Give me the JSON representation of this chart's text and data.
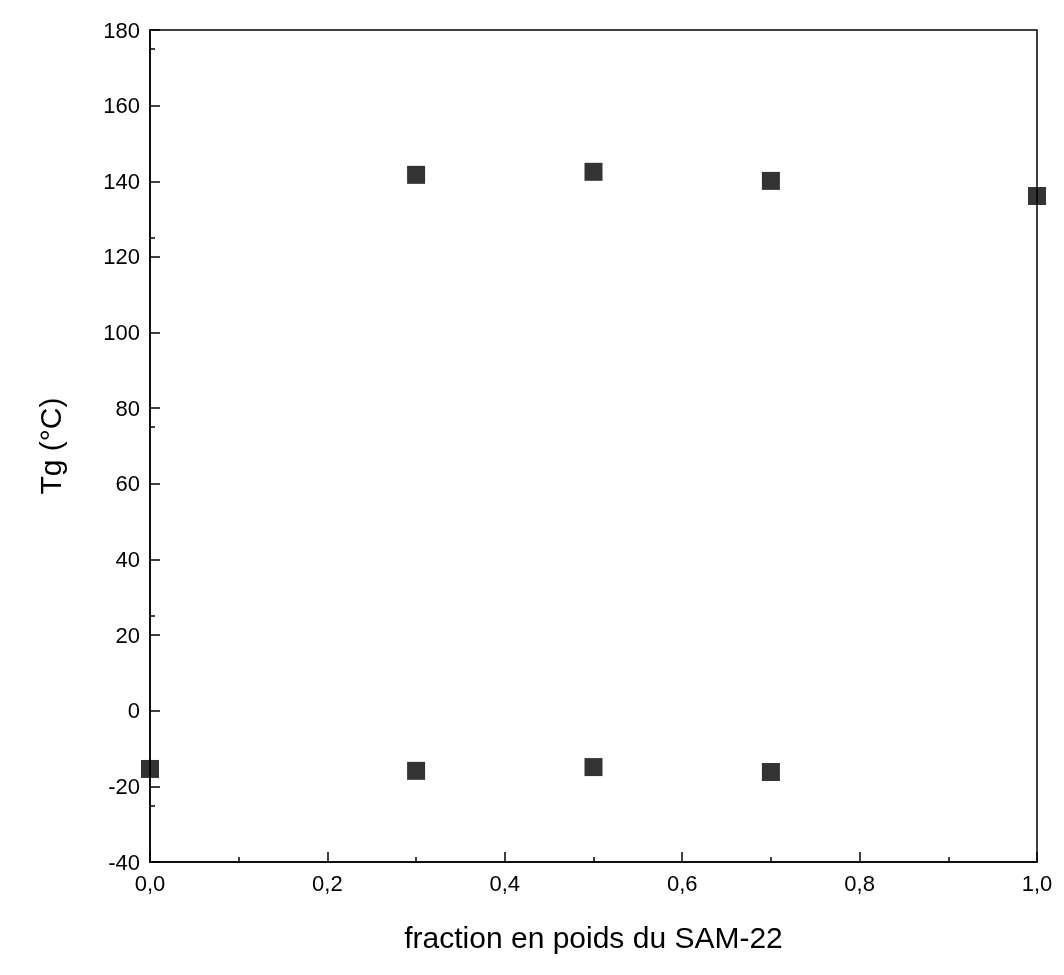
{
  "chart_data": {
    "type": "scatter",
    "xlabel": "fraction en poids du SAM-22",
    "ylabel": "Tg (°C)",
    "series": [
      {
        "color": "#000000",
        "x": [
          0.3,
          0.5,
          0.7,
          1.0
        ],
        "values": [
          141.7,
          142.5,
          140.1,
          136.1
        ]
      },
      {
        "color": "#000000",
        "x": [
          0.0,
          0.3,
          0.5,
          0.7
        ],
        "values": [
          -15.4,
          -15.9,
          -14.9,
          -16.2
        ]
      }
    ],
    "marker": "square",
    "grid": false,
    "xlim": [
      0,
      1
    ],
    "xticks": [
      {
        "value": 0,
        "label": "0,0"
      },
      {
        "value": 0.2,
        "label": "0,2"
      },
      {
        "value": 0.4,
        "label": "0,4"
      },
      {
        "value": 0.6,
        "label": "0,6"
      },
      {
        "value": 0.8,
        "label": "0,8"
      },
      {
        "value": 1,
        "label": "1,0"
      }
    ],
    "ylim": [
      -40,
      180
    ],
    "yticks": [
      -40,
      -20,
      0,
      20,
      40,
      60,
      80,
      100,
      120,
      140,
      160,
      180
    ]
  }
}
